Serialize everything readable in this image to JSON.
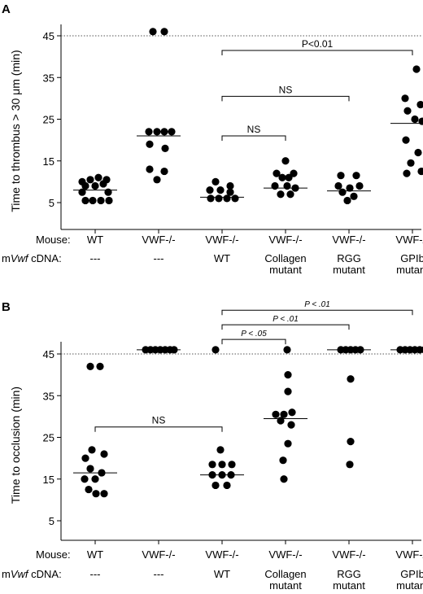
{
  "panels": [
    {
      "letter": "A",
      "ylabel": "Time to thrombus > 30 μm (min)",
      "chart_data": {
        "type": "scatter",
        "ylabel": "Time to thrombus > 30 μm (min)",
        "yticks": [
          5,
          15,
          25,
          35,
          45
        ],
        "ylim": [
          0,
          50
        ],
        "reference_line": 45,
        "row_labels": [
          "Mouse:",
          "mVwf cDNA:"
        ],
        "groups": [
          {
            "mouse": "WT",
            "cdna": [
              "---"
            ],
            "median": 8,
            "values": [
              [
                -0.8,
                10
              ],
              [
                -0.3,
                10.5
              ],
              [
                0.2,
                11
              ],
              [
                0.7,
                10.5
              ],
              [
                -0.6,
                9
              ],
              [
                0,
                9
              ],
              [
                0.5,
                9.5
              ],
              [
                -0.8,
                7.5
              ],
              [
                0.8,
                7.5
              ],
              [
                -0.6,
                5.5
              ],
              [
                -0.15,
                5.5
              ],
              [
                0.35,
                5.5
              ],
              [
                0.85,
                5.5
              ]
            ]
          },
          {
            "mouse": "VWF-/-",
            "cdna": [
              "---"
            ],
            "median": 21,
            "values": [
              [
                -0.35,
                46
              ],
              [
                0.35,
                46
              ],
              [
                -0.6,
                22
              ],
              [
                -0.1,
                22
              ],
              [
                0.35,
                22
              ],
              [
                0.8,
                22
              ],
              [
                -0.55,
                19
              ],
              [
                0.4,
                18
              ],
              [
                -0.55,
                13
              ],
              [
                0.35,
                12.5
              ],
              [
                -0.1,
                10.5
              ]
            ]
          },
          {
            "mouse": "VWF-/-",
            "cdna": [
              "WT"
            ],
            "median": 6.3,
            "values": [
              [
                -0.4,
                10
              ],
              [
                0.5,
                9
              ],
              [
                -0.75,
                8
              ],
              [
                -0.1,
                8
              ],
              [
                0.5,
                7.5
              ],
              [
                -0.7,
                6
              ],
              [
                -0.2,
                6
              ],
              [
                0.3,
                6
              ],
              [
                0.8,
                6
              ]
            ]
          },
          {
            "mouse": "VWF-/-",
            "cdna": [
              "Collagen",
              "mutant"
            ],
            "median": 8.5,
            "values": [
              [
                0,
                15
              ],
              [
                -0.55,
                12
              ],
              [
                0.5,
                12
              ],
              [
                -0.2,
                11
              ],
              [
                0.2,
                11
              ],
              [
                -0.65,
                9
              ],
              [
                0.1,
                9
              ],
              [
                0.6,
                8.5
              ],
              [
                -0.3,
                7
              ],
              [
                0.3,
                7
              ]
            ]
          },
          {
            "mouse": "VWF-/-",
            "cdna": [
              "RGG",
              "mutant"
            ],
            "median": 7.8,
            "values": [
              [
                -0.5,
                11.5
              ],
              [
                0.45,
                11.5
              ],
              [
                -0.65,
                9
              ],
              [
                0.05,
                8.5
              ],
              [
                0.65,
                9
              ],
              [
                -0.4,
                7.5
              ],
              [
                0.3,
                6.5
              ],
              [
                -0.1,
                5.5
              ]
            ]
          },
          {
            "mouse": "VWF-/-",
            "cdna": [
              "GPIb",
              "mutant"
            ],
            "median": 24,
            "values": [
              [
                0.25,
                37
              ],
              [
                -0.45,
                30
              ],
              [
                0.5,
                28.5
              ],
              [
                -0.3,
                27
              ],
              [
                0.15,
                25
              ],
              [
                0.6,
                24.5
              ],
              [
                -0.4,
                20
              ],
              [
                0.35,
                17
              ],
              [
                -0.1,
                14.5
              ],
              [
                -0.35,
                12
              ],
              [
                0.55,
                12.5
              ]
            ]
          }
        ],
        "brackets": [
          {
            "from": 2,
            "to": 5,
            "y": 41.5,
            "label": "P<0.01",
            "italic": false
          },
          {
            "from": 2,
            "to": 4,
            "y": 30.5,
            "label": "NS",
            "italic": false
          },
          {
            "from": 2,
            "to": 3,
            "y": 21,
            "label": "NS",
            "italic": false
          }
        ]
      }
    },
    {
      "letter": "B",
      "ylabel": "Time to occlusion (min)",
      "chart_data": {
        "type": "scatter",
        "ylabel": "Time to occlusion (min)",
        "yticks": [
          5,
          15,
          25,
          35,
          45
        ],
        "ylim": [
          0,
          50
        ],
        "reference_line": 45,
        "row_labels": [
          "Mouse:",
          "mVwf cDNA:"
        ],
        "groups": [
          {
            "mouse": "WT",
            "cdna": [
              "---"
            ],
            "median": 16.5,
            "values": [
              [
                -0.3,
                42
              ],
              [
                0.3,
                42
              ],
              [
                -0.2,
                22
              ],
              [
                0.55,
                21
              ],
              [
                -0.6,
                20
              ],
              [
                -0.3,
                17.5
              ],
              [
                0.4,
                16.5
              ],
              [
                -0.65,
                15
              ],
              [
                0,
                15
              ],
              [
                -0.4,
                12.5
              ],
              [
                0.05,
                11.5
              ],
              [
                0.55,
                11.5
              ]
            ]
          },
          {
            "mouse": "VWF-/-",
            "cdna": [
              "---"
            ],
            "median": 46,
            "values": [
              [
                -0.8,
                46
              ],
              [
                -0.5,
                46
              ],
              [
                -0.2,
                46
              ],
              [
                0.1,
                46
              ],
              [
                0.4,
                46
              ],
              [
                0.7,
                46
              ],
              [
                0.95,
                46
              ]
            ]
          },
          {
            "mouse": "VWF-/-",
            "cdna": [
              "WT"
            ],
            "median": 16,
            "values": [
              [
                -0.4,
                46
              ],
              [
                -0.1,
                22
              ],
              [
                -0.6,
                18.5
              ],
              [
                0,
                18.5
              ],
              [
                0.6,
                18.5
              ],
              [
                -0.6,
                16
              ],
              [
                0,
                16
              ],
              [
                0.55,
                16
              ],
              [
                -0.4,
                13.5
              ],
              [
                0.3,
                13.5
              ]
            ]
          },
          {
            "mouse": "VWF-/-",
            "cdna": [
              "Collagen",
              "mutant"
            ],
            "median": 29.5,
            "values": [
              [
                0.1,
                46
              ],
              [
                0.15,
                40
              ],
              [
                0.15,
                36
              ],
              [
                -0.6,
                30.5
              ],
              [
                -0.1,
                30.5
              ],
              [
                0.4,
                31
              ],
              [
                -0.3,
                29
              ],
              [
                0.35,
                28
              ],
              [
                0.15,
                23.5
              ],
              [
                -0.15,
                19.5
              ],
              [
                -0.1,
                15
              ]
            ]
          },
          {
            "mouse": "VWF-/-",
            "cdna": [
              "RGG",
              "mutant"
            ],
            "median": 46,
            "values": [
              [
                -0.5,
                46
              ],
              [
                -0.2,
                46
              ],
              [
                0.1,
                46
              ],
              [
                0.4,
                46
              ],
              [
                0.7,
                46
              ],
              [
                0.1,
                39
              ],
              [
                0.1,
                24
              ],
              [
                0.05,
                18.5
              ]
            ]
          },
          {
            "mouse": "VWF-/-",
            "cdna": [
              "GPIb",
              "mutant"
            ],
            "median": 46,
            "values": [
              [
                -0.75,
                46
              ],
              [
                -0.45,
                46
              ],
              [
                -0.15,
                46
              ],
              [
                0.15,
                46
              ],
              [
                0.45,
                46
              ],
              [
                0.75,
                46
              ]
            ]
          }
        ],
        "brackets": [
          {
            "from": 0,
            "to": 2,
            "y": 27.5,
            "label": "NS",
            "italic": false
          },
          {
            "from": 2,
            "to": 3,
            "y": 48.5,
            "label": "P < .05",
            "italic": true
          },
          {
            "from": 2,
            "to": 4,
            "y": 52,
            "label": "P < .01",
            "italic": true
          },
          {
            "from": 2,
            "to": 5,
            "y": 55.5,
            "label": "P < .01",
            "italic": true
          }
        ]
      }
    }
  ]
}
